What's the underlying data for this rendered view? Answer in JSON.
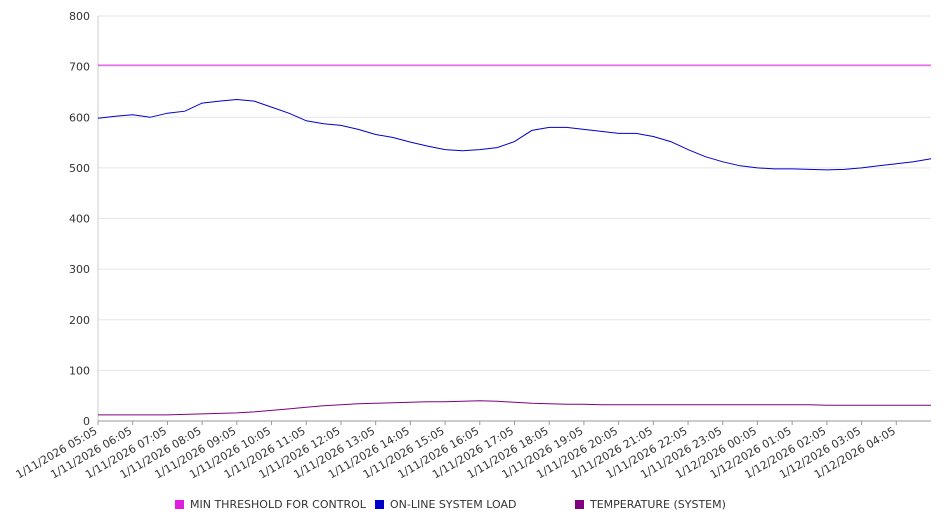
{
  "chart_data": {
    "type": "line",
    "ylim": [
      0,
      800
    ],
    "y_ticks": [
      0,
      100,
      200,
      300,
      400,
      500,
      600,
      700,
      800
    ],
    "grid": true,
    "legend_position": "bottom",
    "x_tick_labels": [
      "1/11/2026 05:05",
      "1/11/2026 06:05",
      "1/11/2026 07:05",
      "1/11/2026 08:05",
      "1/11/2026 09:05",
      "1/11/2026 10:05",
      "1/11/2026 11:05",
      "1/11/2026 12:05",
      "1/11/2026 13:05",
      "1/11/2026 14:05",
      "1/11/2026 15:05",
      "1/11/2026 16:05",
      "1/11/2026 17:05",
      "1/11/2026 18:05",
      "1/11/2026 19:05",
      "1/11/2026 20:05",
      "1/11/2026 21:05",
      "1/11/2026 22:05",
      "1/11/2026 23:05",
      "1/12/2026 00:05",
      "1/12/2026 01:05",
      "1/12/2026 02:05",
      "1/12/2026 03:05",
      "1/12/2026 04:05"
    ],
    "x": [
      "1/11/2026 05:05",
      "1/11/2026 05:35",
      "1/11/2026 06:05",
      "1/11/2026 06:35",
      "1/11/2026 07:05",
      "1/11/2026 07:35",
      "1/11/2026 08:05",
      "1/11/2026 08:35",
      "1/11/2026 09:05",
      "1/11/2026 09:35",
      "1/11/2026 10:05",
      "1/11/2026 10:35",
      "1/11/2026 11:05",
      "1/11/2026 11:35",
      "1/11/2026 12:05",
      "1/11/2026 12:35",
      "1/11/2026 13:05",
      "1/11/2026 13:35",
      "1/11/2026 14:05",
      "1/11/2026 14:35",
      "1/11/2026 15:05",
      "1/11/2026 15:35",
      "1/11/2026 16:05",
      "1/11/2026 16:35",
      "1/11/2026 17:05",
      "1/11/2026 17:35",
      "1/11/2026 18:05",
      "1/11/2026 18:35",
      "1/11/2026 19:05",
      "1/11/2026 19:35",
      "1/11/2026 20:05",
      "1/11/2026 20:35",
      "1/11/2026 21:05",
      "1/11/2026 21:35",
      "1/11/2026 22:05",
      "1/11/2026 22:35",
      "1/11/2026 23:05",
      "1/11/2026 23:35",
      "1/12/2026 00:05",
      "1/12/2026 00:35",
      "1/12/2026 01:05",
      "1/12/2026 01:35",
      "1/12/2026 02:05",
      "1/12/2026 02:35",
      "1/12/2026 03:05",
      "1/12/2026 03:35",
      "1/12/2026 04:05",
      "1/12/2026 04:35",
      "1/12/2026 05:05"
    ],
    "series": [
      {
        "name": "MIN THRESHOLD FOR CONTROL",
        "color": "#e01ee0",
        "values": [
          703,
          703,
          703,
          703,
          703,
          703,
          703,
          703,
          703,
          703,
          703,
          703,
          703,
          703,
          703,
          703,
          703,
          703,
          703,
          703,
          703,
          703,
          703,
          703,
          703,
          703,
          703,
          703,
          703,
          703,
          703,
          703,
          703,
          703,
          703,
          703,
          703,
          703,
          703,
          703,
          703,
          703,
          703,
          703,
          703,
          703,
          703,
          703,
          703
        ]
      },
      {
        "name": "ON-LINE SYSTEM LOAD",
        "color": "#0000cc",
        "values": [
          598,
          602,
          605,
          600,
          608,
          612,
          628,
          632,
          635,
          632,
          620,
          608,
          593,
          587,
          584,
          576,
          566,
          560,
          551,
          543,
          536,
          534,
          536,
          540,
          552,
          574,
          580,
          580,
          576,
          572,
          568,
          568,
          562,
          552,
          536,
          522,
          512,
          504,
          500,
          498,
          498,
          497,
          496,
          497,
          500,
          504,
          508,
          512,
          518
        ]
      },
      {
        "name": "TEMPERATURE (SYSTEM)",
        "color": "#800080",
        "values": [
          12,
          12,
          12,
          12,
          12,
          13,
          14,
          15,
          16,
          18,
          21,
          24,
          27,
          30,
          32,
          34,
          35,
          36,
          37,
          38,
          38,
          39,
          40,
          39,
          37,
          35,
          34,
          33,
          33,
          32,
          32,
          32,
          32,
          32,
          32,
          32,
          32,
          32,
          32,
          32,
          32,
          32,
          31,
          31,
          31,
          31,
          31,
          31,
          31
        ]
      }
    ]
  }
}
